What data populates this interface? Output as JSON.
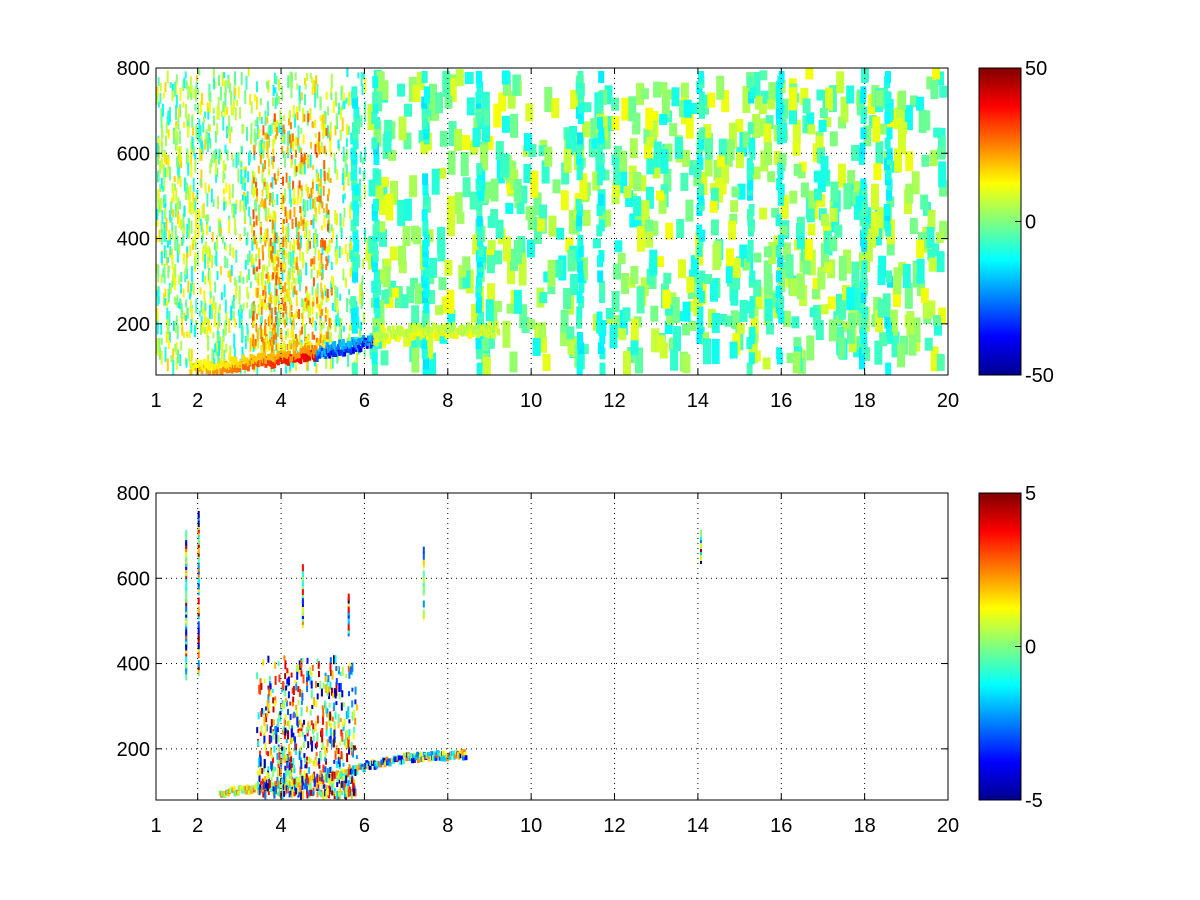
{
  "chart_data": [
    {
      "type": "heatmap",
      "title": "",
      "xlabel": "",
      "ylabel": "",
      "xlim": [
        1,
        20
      ],
      "ylim": [
        80,
        800
      ],
      "grid": true,
      "colormap": "jet",
      "xticks": [
        "1",
        "2",
        "4",
        "6",
        "8",
        "10",
        "12",
        "14",
        "16",
        "18",
        "20"
      ],
      "yticks": [
        "200",
        "400",
        "600",
        "800"
      ],
      "colorbar": {
        "clim": [
          -50,
          50
        ],
        "ticks": [
          "50",
          "0",
          "-50"
        ]
      },
      "data_features": {
        "ridge_curve": [
          [
            1.8,
            100
          ],
          [
            2.5,
            102
          ],
          [
            3,
            108
          ],
          [
            3.5,
            114
          ],
          [
            4,
            120
          ],
          [
            4.5,
            128
          ],
          [
            5,
            136
          ],
          [
            5.5,
            146
          ],
          [
            6,
            160
          ],
          [
            6.5,
            175
          ],
          [
            7,
            182
          ],
          [
            8,
            185
          ],
          [
            9,
            188
          ]
        ],
        "ridge_value_range": [
          -50,
          50
        ],
        "scattered_value_range": [
          -20,
          20
        ],
        "dense_region_x": [
          1,
          6
        ],
        "vertical_bands_x": [
          5.7,
          6.2,
          7.4,
          8.7,
          11.1,
          11.6,
          14.0,
          15.2,
          15.9,
          17.9,
          18.5
        ]
      }
    },
    {
      "type": "heatmap",
      "title": "",
      "xlabel": "",
      "ylabel": "",
      "xlim": [
        1,
        20
      ],
      "ylim": [
        80,
        800
      ],
      "grid": true,
      "colormap": "jet",
      "xticks": [
        "1",
        "2",
        "4",
        "6",
        "8",
        "10",
        "12",
        "14",
        "16",
        "18",
        "20"
      ],
      "yticks": [
        "200",
        "400",
        "600",
        "800"
      ],
      "colorbar": {
        "clim": [
          -5,
          5
        ],
        "ticks": [
          "5",
          "0",
          "-5"
        ]
      },
      "data_features": {
        "ridge_curve": [
          [
            2.5,
            100
          ],
          [
            3,
            108
          ],
          [
            3.5,
            114
          ],
          [
            4,
            120
          ],
          [
            4.5,
            130
          ],
          [
            5,
            138
          ],
          [
            5.5,
            146
          ],
          [
            6,
            165
          ],
          [
            7,
            185
          ],
          [
            8,
            190
          ],
          [
            8.4,
            192
          ]
        ],
        "cluster_x": [
          3.4,
          5.8
        ],
        "cluster_y": [
          100,
          420
        ],
        "isolated_columns": [
          [
            2.0,
            380,
            760
          ],
          [
            1.7,
            370,
            720
          ],
          [
            4.5,
            500,
            640
          ],
          [
            7.4,
            520,
            680
          ],
          [
            14.05,
            650,
            720
          ],
          [
            5.6,
            480,
            570
          ]
        ]
      }
    }
  ]
}
